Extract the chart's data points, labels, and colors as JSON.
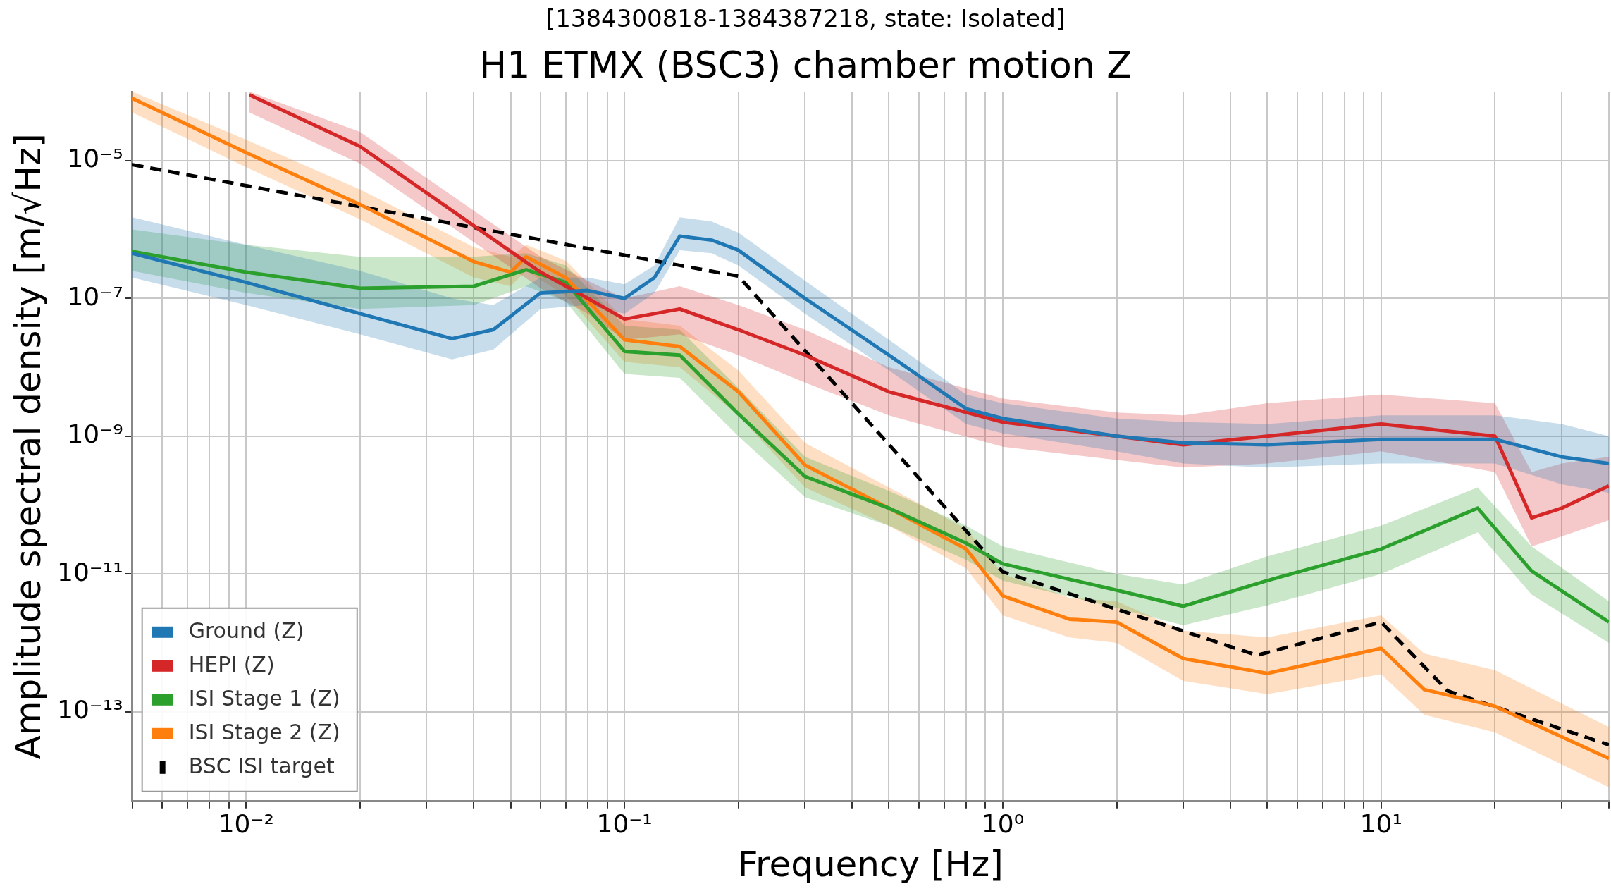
{
  "chart_data": {
    "type": "line",
    "title": "H1 ETMX (BSC3) chamber motion Z",
    "subtitle": "[1384300818-1384387218, state: Isolated]",
    "xlabel": "Frequency [Hz]",
    "ylabel": "Amplitude spectral density [m/√Hz]",
    "log": "xy",
    "grid": true,
    "legend": "bottom left",
    "marker": "none",
    "xlim": [
      0.005,
      40
    ],
    "ylim": [
      5e-15,
      0.0001
    ],
    "xticks": [
      {
        "value": 0.005,
        "label": null
      },
      {
        "value": 0.006,
        "label": null
      },
      {
        "value": 0.007,
        "label": null
      },
      {
        "value": 0.008,
        "label": null
      },
      {
        "value": 0.009,
        "label": null
      },
      {
        "value": 0.01,
        "label": "10⁻²"
      },
      {
        "value": 0.02,
        "label": null
      },
      {
        "value": 0.03,
        "label": null
      },
      {
        "value": 0.04,
        "label": null
      },
      {
        "value": 0.05,
        "label": null
      },
      {
        "value": 0.06,
        "label": null
      },
      {
        "value": 0.07,
        "label": null
      },
      {
        "value": 0.08,
        "label": null
      },
      {
        "value": 0.09,
        "label": null
      },
      {
        "value": 0.1,
        "label": "10⁻¹"
      },
      {
        "value": 0.2,
        "label": null
      },
      {
        "value": 0.3,
        "label": null
      },
      {
        "value": 0.4,
        "label": null
      },
      {
        "value": 0.5,
        "label": null
      },
      {
        "value": 0.6,
        "label": null
      },
      {
        "value": 0.7,
        "label": null
      },
      {
        "value": 0.8,
        "label": null
      },
      {
        "value": 0.9,
        "label": null
      },
      {
        "value": 1,
        "label": "10⁰"
      },
      {
        "value": 2,
        "label": null
      },
      {
        "value": 3,
        "label": null
      },
      {
        "value": 4,
        "label": null
      },
      {
        "value": 5,
        "label": null
      },
      {
        "value": 6,
        "label": null
      },
      {
        "value": 7,
        "label": null
      },
      {
        "value": 8,
        "label": null
      },
      {
        "value": 9,
        "label": null
      },
      {
        "value": 10,
        "label": "10¹"
      },
      {
        "value": 20,
        "label": null
      },
      {
        "value": 30,
        "label": null
      },
      {
        "value": 40,
        "label": null
      }
    ],
    "yticks": [
      {
        "value": 1e-13,
        "label": "10⁻¹³"
      },
      {
        "value": 1e-11,
        "label": "10⁻¹¹"
      },
      {
        "value": 1e-09,
        "label": "10⁻⁹"
      },
      {
        "value": 1e-07,
        "label": "10⁻⁷"
      },
      {
        "value": 1e-05,
        "label": "10⁻⁵"
      }
    ],
    "series": [
      {
        "name": "Ground (Z)",
        "color": "#1f77b4",
        "x": [
          0.005,
          0.01,
          0.02,
          0.035,
          0.045,
          0.06,
          0.08,
          0.1,
          0.12,
          0.14,
          0.17,
          0.2,
          0.3,
          0.5,
          0.8,
          1,
          2,
          3,
          5,
          10,
          20,
          30,
          40
        ],
        "values": [
          4.5e-07,
          1.7e-07,
          6e-08,
          2.6e-08,
          3.5e-08,
          1.2e-07,
          1.3e-07,
          1e-07,
          2e-07,
          8e-07,
          7e-07,
          5e-07,
          1e-07,
          1.5e-08,
          2.5e-09,
          1.8e-09,
          1e-09,
          8e-10,
          7.5e-10,
          9e-10,
          9e-10,
          5e-10,
          4e-10
        ],
        "lower": [
          2e-07,
          8e-08,
          3e-08,
          1.3e-08,
          1.8e-08,
          7e-08,
          8e-08,
          6e-08,
          1.2e-07,
          5e-07,
          4.5e-07,
          3e-07,
          6e-08,
          9e-09,
          1.5e-09,
          1.1e-09,
          6e-10,
          4e-10,
          3.5e-10,
          4e-10,
          4e-10,
          2e-10,
          1.5e-10
        ],
        "upper": [
          1.5e-06,
          6e-07,
          2.5e-07,
          1e-07,
          8e-08,
          2e-07,
          2e-07,
          1.6e-07,
          3e-07,
          1.5e-06,
          1.3e-06,
          9e-07,
          1.8e-07,
          2.5e-08,
          4e-09,
          3e-09,
          1.8e-09,
          1.6e-09,
          1.5e-09,
          2e-09,
          2e-09,
          1.5e-09,
          1e-09
        ]
      },
      {
        "name": "HEPI (Z)",
        "color": "#d62728",
        "x": [
          0.0102,
          0.02,
          0.05,
          0.06,
          0.08,
          0.1,
          0.14,
          0.2,
          0.3,
          0.5,
          1,
          2,
          3,
          5,
          10,
          20,
          25,
          30,
          40
        ],
        "values": [
          9e-05,
          1.6e-05,
          4.8e-07,
          2.4e-07,
          1e-07,
          5e-08,
          7e-08,
          3.5e-08,
          1.5e-08,
          4.4e-09,
          1.6e-09,
          1e-09,
          7.5e-10,
          1e-09,
          1.5e-09,
          1e-09,
          6.5e-11,
          9e-11,
          1.9e-10
        ],
        "lower": [
          5e-05,
          9e-06,
          2.8e-07,
          1.4e-07,
          6e-08,
          2.5e-08,
          3e-08,
          1.5e-08,
          6e-09,
          2e-09,
          7e-10,
          4.5e-10,
          3.5e-10,
          4e-10,
          6e-10,
          3e-10,
          2.5e-11,
          3.5e-11,
          6e-11
        ],
        "upper": [
          0.0001,
          2.6e-05,
          8e-07,
          4e-07,
          1.8e-07,
          1e-07,
          1.5e-07,
          8e-08,
          3.5e-08,
          1e-08,
          3.5e-09,
          2.2e-09,
          2e-09,
          3e-09,
          4e-09,
          3e-09,
          3e-10,
          4e-10,
          5e-10
        ]
      },
      {
        "name": "ISI Stage 1 (Z)",
        "color": "#2ca02c",
        "x": [
          0.005,
          0.01,
          0.02,
          0.04,
          0.055,
          0.07,
          0.1,
          0.14,
          0.2,
          0.3,
          0.5,
          0.8,
          1,
          2,
          3,
          5,
          10,
          18,
          25,
          40
        ],
        "values": [
          4.8e-07,
          2.4e-07,
          1.4e-07,
          1.5e-07,
          2.6e-07,
          1.7e-07,
          1.7e-08,
          1.5e-08,
          2.1e-09,
          2.6e-10,
          9e-11,
          2.8e-11,
          1.4e-11,
          5.8e-12,
          3.4e-12,
          8e-12,
          2.3e-11,
          9e-11,
          1.1e-11,
          2e-12
        ],
        "lower": [
          2.5e-07,
          1.2e-07,
          7e-08,
          8e-08,
          1.5e-07,
          9e-08,
          8e-09,
          7e-09,
          1e-09,
          1.3e-10,
          5e-11,
          1.6e-11,
          8e-12,
          3.2e-12,
          1.8e-12,
          3.5e-12,
          1e-11,
          4e-11,
          5e-12,
          1e-12
        ],
        "upper": [
          1e-06,
          6e-07,
          4e-07,
          4e-07,
          4.5e-07,
          3e-07,
          4e-08,
          3.5e-08,
          5e-09,
          5e-10,
          1.6e-10,
          5e-11,
          2.5e-11,
          1e-11,
          7e-12,
          1.8e-11,
          5e-11,
          1.8e-10,
          2.5e-11,
          4e-12
        ]
      },
      {
        "name": "ISI Stage 2 (Z)",
        "color": "#ff7f0e",
        "x": [
          0.005,
          0.01,
          0.02,
          0.04,
          0.05,
          0.055,
          0.07,
          0.1,
          0.14,
          0.2,
          0.3,
          0.5,
          0.8,
          1,
          1.5,
          2,
          3,
          5,
          10,
          13,
          20,
          40
        ],
        "values": [
          8e-05,
          1.3e-05,
          2.3e-06,
          3.4e-07,
          2.4e-07,
          4e-07,
          2e-07,
          2.5e-08,
          2e-08,
          4.4e-09,
          3.8e-10,
          9e-11,
          2.3e-11,
          4.8e-12,
          2.2e-12,
          2e-12,
          5.9e-13,
          3.6e-13,
          8.3e-13,
          2.1e-13,
          1.2e-13,
          2.1e-14
        ],
        "lower": [
          5e-05,
          8e-06,
          1.4e-06,
          2e-07,
          1.5e-07,
          2.5e-07,
          1.1e-07,
          1.2e-08,
          1e-08,
          2e-09,
          1.8e-10,
          5e-11,
          1.2e-11,
          2.5e-12,
          1.2e-12,
          1e-12,
          2.8e-13,
          1.8e-13,
          3.5e-13,
          9e-14,
          5e-14,
          8e-15
        ],
        "upper": [
          0.0001,
          2e-05,
          3.8e-06,
          5.5e-07,
          4e-07,
          6e-07,
          3.5e-07,
          5e-08,
          4e-08,
          9e-09,
          8e-10,
          1.8e-10,
          4.5e-11,
          1e-11,
          4.5e-12,
          4e-12,
          1.5e-12,
          1.2e-12,
          2.5e-12,
          7e-13,
          4e-13,
          6e-14
        ]
      },
      {
        "name": "BSC ISI target",
        "color": "#000000",
        "line_style": "dashed",
        "x": [
          0.005,
          0.2,
          1,
          4.7,
          10,
          15,
          40
        ],
        "values": [
          8.7e-06,
          2.1e-07,
          1.07e-11,
          6.6e-13,
          2e-12,
          2e-13,
          3.3e-14
        ]
      }
    ]
  }
}
